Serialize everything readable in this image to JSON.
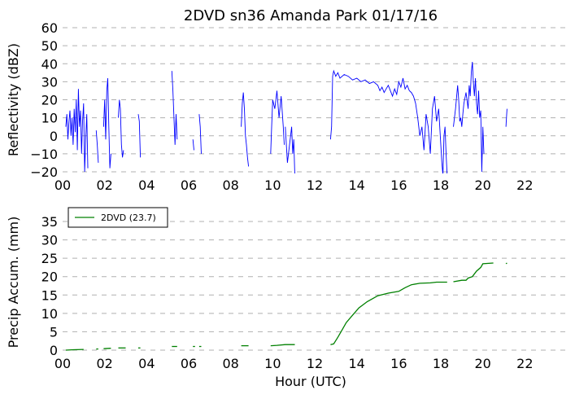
{
  "chart_data": [
    {
      "type": "line",
      "title": "2DVD sn36 Amanda Park 01/17/16",
      "ylabel": "Reflectivity (dBZ)",
      "xlabel": "",
      "xlim": [
        0,
        24
      ],
      "ylim": [
        -20,
        60
      ],
      "xticks": [
        0,
        2,
        4,
        6,
        8,
        10,
        12,
        14,
        16,
        18,
        20,
        22
      ],
      "xtick_labels": [
        "00",
        "02",
        "04",
        "06",
        "08",
        "10",
        "12",
        "14",
        "16",
        "18",
        "20",
        "22"
      ],
      "yticks": [
        -20,
        -10,
        0,
        10,
        20,
        30,
        40,
        50,
        60
      ],
      "ytick_labels": [
        "−20",
        "−10",
        "0",
        "10",
        "20",
        "30",
        "40",
        "50",
        "60"
      ],
      "grid": "horizontal dashed",
      "color": "#0000ff",
      "series": [
        {
          "segments": [
            [
              [
                0.15,
                5
              ],
              [
                0.2,
                12
              ],
              [
                0.25,
                -2
              ],
              [
                0.3,
                8
              ],
              [
                0.35,
                14
              ],
              [
                0.4,
                0
              ],
              [
                0.45,
                10
              ],
              [
                0.5,
                -5
              ],
              [
                0.55,
                15
              ],
              [
                0.6,
                2
              ],
              [
                0.65,
                20
              ],
              [
                0.7,
                -8
              ],
              [
                0.75,
                26
              ],
              [
                0.8,
                5
              ],
              [
                0.85,
                14
              ],
              [
                0.9,
                -10
              ],
              [
                0.95,
                8
              ],
              [
                1.0,
                18
              ],
              [
                1.05,
                -20
              ],
              [
                1.1,
                -2
              ],
              [
                1.15,
                12
              ],
              [
                1.2,
                -18
              ]
            ],
            [
              [
                1.6,
                3
              ],
              [
                1.65,
                -5
              ],
              [
                1.7,
                -15
              ]
            ],
            [
              [
                1.95,
                5
              ],
              [
                2.0,
                20
              ],
              [
                2.05,
                -2
              ],
              [
                2.1,
                25
              ],
              [
                2.15,
                32
              ],
              [
                2.2,
                5
              ],
              [
                2.25,
                -18
              ],
              [
                2.3,
                -10
              ]
            ],
            [
              [
                2.65,
                10
              ],
              [
                2.7,
                20
              ],
              [
                2.75,
                15
              ],
              [
                2.8,
                -5
              ],
              [
                2.85,
                -12
              ],
              [
                2.9,
                -8
              ]
            ],
            [
              [
                3.6,
                12
              ],
              [
                3.65,
                8
              ],
              [
                3.7,
                -12
              ]
            ],
            [
              [
                5.2,
                36
              ],
              [
                5.25,
                25
              ],
              [
                5.3,
                10
              ],
              [
                5.35,
                -5
              ],
              [
                5.4,
                12
              ],
              [
                5.45,
                -2
              ]
            ],
            [
              [
                6.2,
                -2
              ],
              [
                6.25,
                -8
              ]
            ],
            [
              [
                6.5,
                12
              ],
              [
                6.55,
                5
              ],
              [
                6.6,
                -10
              ]
            ],
            [
              [
                8.5,
                5
              ],
              [
                8.55,
                18
              ],
              [
                8.6,
                24
              ],
              [
                8.65,
                15
              ],
              [
                8.7,
                0
              ],
              [
                8.75,
                -5
              ],
              [
                8.8,
                -12
              ],
              [
                8.85,
                -17
              ]
            ],
            [
              [
                9.9,
                -10
              ],
              [
                9.95,
                5
              ],
              [
                10.0,
                20
              ],
              [
                10.1,
                15
              ],
              [
                10.2,
                25
              ],
              [
                10.3,
                10
              ],
              [
                10.4,
                22
              ],
              [
                10.5,
                5
              ],
              [
                10.55,
                -5
              ]
            ],
            [
              [
                10.6,
                5
              ],
              [
                10.7,
                -15
              ],
              [
                10.8,
                -5
              ],
              [
                10.9,
                5
              ],
              [
                10.95,
                -10
              ],
              [
                11.0,
                -2
              ],
              [
                11.05,
                -22
              ]
            ],
            [
              [
                12.75,
                -2
              ],
              [
                12.8,
                5
              ],
              [
                12.85,
                33
              ],
              [
                12.9,
                36
              ],
              [
                13.0,
                33
              ],
              [
                13.1,
                35
              ],
              [
                13.2,
                32
              ],
              [
                13.4,
                34
              ],
              [
                13.6,
                33
              ],
              [
                13.8,
                31
              ],
              [
                14.0,
                32
              ],
              [
                14.2,
                30
              ],
              [
                14.4,
                31
              ],
              [
                14.6,
                29
              ],
              [
                14.8,
                30
              ],
              [
                15.0,
                28
              ],
              [
                15.1,
                25
              ],
              [
                15.2,
                27
              ],
              [
                15.3,
                24
              ],
              [
                15.4,
                26
              ],
              [
                15.5,
                28
              ],
              [
                15.6,
                25
              ],
              [
                15.7,
                22
              ],
              [
                15.8,
                26
              ],
              [
                15.9,
                23
              ],
              [
                16.0,
                30
              ],
              [
                16.1,
                27
              ],
              [
                16.2,
                32
              ],
              [
                16.3,
                26
              ],
              [
                16.4,
                28
              ],
              [
                16.5,
                25
              ],
              [
                16.6,
                24
              ],
              [
                16.7,
                22
              ],
              [
                16.8,
                18
              ],
              [
                16.9,
                10
              ],
              [
                17.0,
                0
              ],
              [
                17.1,
                5
              ],
              [
                17.2,
                -8
              ],
              [
                17.3,
                12
              ],
              [
                17.4,
                5
              ],
              [
                17.5,
                -10
              ],
              [
                17.6,
                15
              ],
              [
                17.7,
                22
              ],
              [
                17.8,
                8
              ],
              [
                17.9,
                15
              ],
              [
                18.0,
                -5
              ],
              [
                18.05,
                -15
              ],
              [
                18.1,
                -22
              ],
              [
                18.15,
                0
              ],
              [
                18.2,
                5
              ],
              [
                18.25,
                -10
              ],
              [
                18.3,
                -22
              ]
            ],
            [
              [
                18.6,
                5
              ],
              [
                18.7,
                15
              ],
              [
                18.8,
                28
              ],
              [
                18.85,
                20
              ],
              [
                18.9,
                8
              ],
              [
                18.95,
                10
              ],
              [
                19.0,
                5
              ],
              [
                19.05,
                12
              ],
              [
                19.1,
                18
              ],
              [
                19.2,
                24
              ],
              [
                19.3,
                15
              ],
              [
                19.35,
                28
              ],
              [
                19.4,
                22
              ],
              [
                19.45,
                35
              ],
              [
                19.5,
                41
              ],
              [
                19.55,
                30
              ],
              [
                19.6,
                22
              ],
              [
                19.65,
                32
              ],
              [
                19.7,
                18
              ],
              [
                19.75,
                12
              ],
              [
                19.8,
                25
              ],
              [
                19.85,
                10
              ],
              [
                19.9,
                14
              ],
              [
                19.95,
                -20
              ],
              [
                20.0,
                5
              ],
              [
                20.05,
                -10
              ]
            ],
            [
              [
                21.1,
                5
              ],
              [
                21.15,
                15
              ]
            ]
          ]
        }
      ]
    },
    {
      "type": "line",
      "title": "",
      "ylabel": "Precip Accum. (mm)",
      "xlabel": "Hour (UTC)",
      "xlim": [
        0,
        24
      ],
      "ylim": [
        0,
        37
      ],
      "xticks": [
        0,
        2,
        4,
        6,
        8,
        10,
        12,
        14,
        16,
        18,
        20,
        22
      ],
      "xtick_labels": [
        "00",
        "02",
        "04",
        "06",
        "08",
        "10",
        "12",
        "14",
        "16",
        "18",
        "20",
        "22"
      ],
      "yticks": [
        0,
        5,
        10,
        15,
        20,
        25,
        30,
        35
      ],
      "ytick_labels": [
        "0",
        "5",
        "10",
        "15",
        "20",
        "25",
        "30",
        "35"
      ],
      "grid": "horizontal dashed",
      "legend_position": "top-left",
      "color": "#008000",
      "series": [
        {
          "name": "2DVD (23.7)",
          "segments": [
            [
              [
                0.15,
                0.0
              ],
              [
                0.5,
                0.1
              ],
              [
                1.0,
                0.2
              ]
            ],
            [
              [
                1.6,
                0.3
              ],
              [
                1.7,
                0.3
              ]
            ],
            [
              [
                1.95,
                0.4
              ],
              [
                2.3,
                0.5
              ]
            ],
            [
              [
                2.65,
                0.6
              ],
              [
                3.0,
                0.6
              ]
            ],
            [
              [
                3.6,
                0.6
              ],
              [
                3.7,
                0.6
              ]
            ],
            [
              [
                5.2,
                1.0
              ],
              [
                5.45,
                1.0
              ]
            ],
            [
              [
                6.2,
                1.0
              ],
              [
                6.3,
                1.0
              ]
            ],
            [
              [
                6.5,
                1.0
              ],
              [
                6.6,
                1.0
              ]
            ],
            [
              [
                8.5,
                1.2
              ],
              [
                8.85,
                1.2
              ]
            ],
            [
              [
                9.9,
                1.2
              ],
              [
                10.2,
                1.3
              ],
              [
                10.6,
                1.5
              ],
              [
                11.05,
                1.5
              ]
            ],
            [
              [
                12.75,
                1.5
              ],
              [
                12.9,
                1.7
              ],
              [
                13.1,
                3.5
              ],
              [
                13.3,
                5.5
              ],
              [
                13.5,
                7.5
              ],
              [
                13.8,
                9.5
              ],
              [
                14.1,
                11.5
              ],
              [
                14.5,
                13.2
              ],
              [
                15.0,
                14.8
              ],
              [
                15.5,
                15.5
              ],
              [
                16.0,
                16.0
              ],
              [
                16.3,
                17.0
              ],
              [
                16.6,
                17.8
              ],
              [
                17.0,
                18.2
              ],
              [
                17.5,
                18.3
              ],
              [
                17.8,
                18.5
              ],
              [
                18.3,
                18.5
              ]
            ],
            [
              [
                18.6,
                18.6
              ],
              [
                19.0,
                19.0
              ],
              [
                19.2,
                19.0
              ],
              [
                19.3,
                19.6
              ],
              [
                19.5,
                20.0
              ],
              [
                19.7,
                21.5
              ],
              [
                19.9,
                22.5
              ],
              [
                20.0,
                23.5
              ],
              [
                20.5,
                23.7
              ]
            ],
            [
              [
                21.1,
                23.5
              ],
              [
                21.15,
                23.7
              ]
            ]
          ]
        }
      ]
    }
  ]
}
